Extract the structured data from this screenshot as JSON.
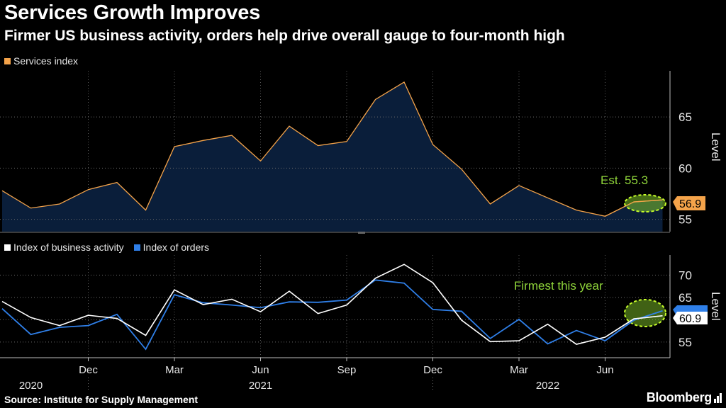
{
  "title": "Services Growth Improves",
  "subtitle": "Firmer US business activity, orders help drive overall gauge to four-month high",
  "source": "Source: Institute for Supply Management",
  "brand": "Bloomberg",
  "colors": {
    "services": "#f4a34a",
    "services_fill": "#0a1e3a",
    "activity": "#ffffff",
    "orders": "#2f7fe8",
    "highlight": "#7fc22a"
  },
  "chart_data": [
    {
      "type": "area",
      "title": "Services index",
      "ylabel": "Level",
      "ylim": [
        53.8,
        69.5
      ],
      "yticks": [
        55,
        60,
        65
      ],
      "series": [
        {
          "name": "Services index",
          "values": [
            57.8,
            56.1,
            56.5,
            57.9,
            58.6,
            55.9,
            62.1,
            62.7,
            63.2,
            60.7,
            64.1,
            62.2,
            62.6,
            66.7,
            68.4,
            62.3,
            59.9,
            56.5,
            58.3,
            57.1,
            55.9,
            55.3,
            56.7,
            56.9
          ]
        }
      ],
      "last_value_label": "56.9",
      "annotation": "Est. 55.3"
    },
    {
      "type": "line",
      "ylabel": "Level",
      "ylim": [
        51.5,
        74.5
      ],
      "yticks": [
        55,
        60,
        65,
        70
      ],
      "x_tick_labels": [
        "Dec",
        "Mar",
        "Jun",
        "Sep",
        "Dec",
        "Mar",
        "Jun"
      ],
      "year_labels": [
        "2020",
        "2021",
        "2022"
      ],
      "series": [
        {
          "name": "Index of business activity",
          "values": [
            64.1,
            60.5,
            58.7,
            61.0,
            60.3,
            56.5,
            66.7,
            63.4,
            64.6,
            61.8,
            66.4,
            61.4,
            63.3,
            69.3,
            72.4,
            68.3,
            59.9,
            55.1,
            55.3,
            59.0,
            54.5,
            56.1,
            60.2,
            60.9
          ]
        },
        {
          "name": "Index of orders",
          "values": [
            62.5,
            56.7,
            58.3,
            58.7,
            61.2,
            53.4,
            65.6,
            63.8,
            63.3,
            62.7,
            64.0,
            63.9,
            64.4,
            68.9,
            68.2,
            62.3,
            61.9,
            55.8,
            60.1,
            54.6,
            57.6,
            55.3,
            59.9,
            62.0
          ]
        }
      ],
      "last_value_label": "60.9",
      "annotation": "Firmest this year"
    }
  ]
}
